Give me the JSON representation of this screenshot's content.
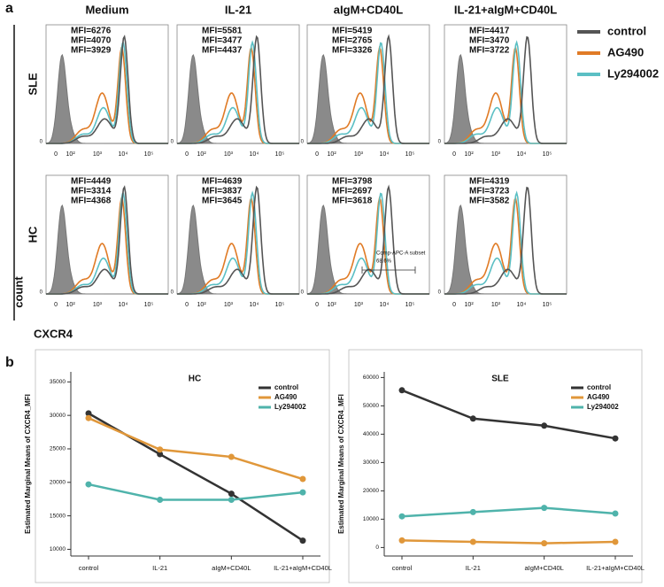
{
  "panel_a": {
    "label": "a",
    "columns": [
      "Medium",
      "IL-21",
      "aIgM+CD40L",
      "IL-21+aIgM+CD40L"
    ],
    "rows": [
      "SLE",
      "HC"
    ],
    "y_axis_label": "count",
    "x_axis_label": "CXCR4",
    "x_tick_labels": [
      "0",
      "10²",
      "10³",
      "10⁴",
      "10⁵"
    ],
    "y_tick_label": "0",
    "legend": [
      {
        "name": "control",
        "color": "#555555"
      },
      {
        "name": "AG490",
        "color": "#e07b26"
      },
      {
        "name": "Ly294002",
        "color": "#5bbfc4"
      }
    ],
    "mfi": [
      [
        [
          "MFI=6276",
          "MFI=4070",
          "MFI=3929"
        ],
        [
          "MFI=5581",
          "MFI=3477",
          "MFI=4437"
        ],
        [
          "MFI=5419",
          "MFI=2765",
          "MFI=3326"
        ],
        [
          "MFI=4417",
          "MFI=3470",
          "MFI=3722"
        ]
      ],
      [
        [
          "MFI=4449",
          "MFI=3314",
          "MFI=4368"
        ],
        [
          "MFI=4639",
          "MFI=3837",
          "MFI=3645"
        ],
        [
          "MFI=3798",
          "MFI=2697",
          "MFI=3618"
        ],
        [
          "MFI=4319",
          "MFI=3723",
          "MFI=3582"
        ]
      ]
    ],
    "gate": {
      "name": "Comp-APC-A subset",
      "percent": "68.6%"
    }
  },
  "panel_b_label": "b",
  "chart_data": [
    {
      "type": "line",
      "title": "HC",
      "y_label": "Estimated Marginal Means of CXCR4_MFI",
      "categories": [
        "control",
        "IL-21",
        "aIgM+CD40L",
        "IL-21+aIgM+CD40L"
      ],
      "series": [
        {
          "name": "control",
          "color": "#333333",
          "values": [
            30300,
            24200,
            18300,
            11300
          ]
        },
        {
          "name": "AG490",
          "color": "#e0973a",
          "values": [
            29600,
            24900,
            23800,
            20500
          ]
        },
        {
          "name": "Ly294002",
          "color": "#4fb3ab",
          "values": [
            19700,
            17400,
            17400,
            18500
          ]
        }
      ],
      "ylim": [
        9000,
        36500
      ],
      "yticks": [
        10000,
        15000,
        20000,
        25000,
        30000,
        35000
      ]
    },
    {
      "type": "line",
      "title": "SLE",
      "y_label": "Estimated Marginal Means of CXCR4_MFI",
      "categories": [
        "control",
        "IL-21",
        "aIgM+CD40L",
        "IL-21+aIgM+CD40L"
      ],
      "series": [
        {
          "name": "control",
          "color": "#333333",
          "values": [
            55500,
            45500,
            43000,
            38500
          ]
        },
        {
          "name": "AG490",
          "color": "#e0973a",
          "values": [
            2500,
            2000,
            1500,
            2000
          ]
        },
        {
          "name": "Ly294002",
          "color": "#4fb3ab",
          "values": [
            11000,
            12500,
            14000,
            12000
          ]
        }
      ],
      "ylim": [
        -3000,
        62000
      ],
      "yticks": [
        0,
        10000,
        20000,
        30000,
        40000,
        50000,
        60000
      ]
    }
  ]
}
